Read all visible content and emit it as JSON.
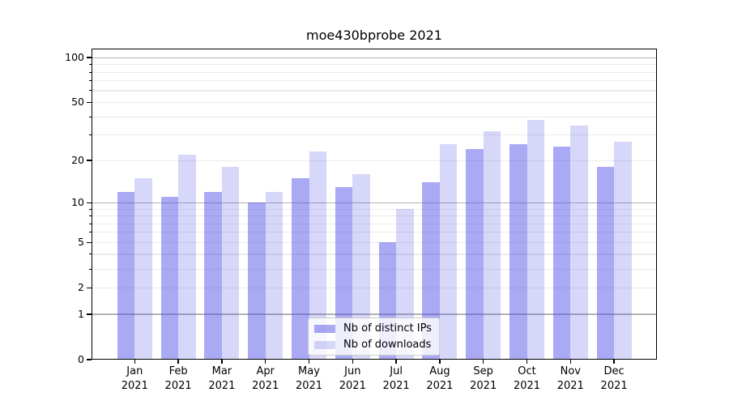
{
  "figure": {
    "title": "moe430bprobe 2021"
  },
  "chart_data": {
    "type": "bar",
    "title": "moe430bprobe 2021",
    "x": {
      "categories": [
        "Jan",
        "Feb",
        "Mar",
        "Apr",
        "May",
        "Jun",
        "Jul",
        "Aug",
        "Sep",
        "Oct",
        "Nov",
        "Dec"
      ],
      "year_line": "2021"
    },
    "series": [
      {
        "name": "Nb of distinct IPs",
        "color": "rgba(75,75,232,0.48)",
        "values": [
          12,
          11,
          12,
          10,
          15,
          13,
          5,
          14,
          24,
          26,
          25,
          18
        ]
      },
      {
        "name": "Nb of downloads",
        "color": "rgba(75,75,232,0.22)",
        "values": [
          15,
          22,
          18,
          12,
          23,
          16,
          9,
          26,
          32,
          38,
          35,
          27
        ]
      }
    ],
    "y_axis": {
      "scale": "log1p",
      "labeled_ticks": [
        100,
        50,
        20,
        10,
        5,
        2,
        1,
        0
      ],
      "major_gridlines": [
        1,
        10,
        100
      ],
      "minor_gridlines": [
        2,
        3,
        4,
        5,
        6,
        7,
        8,
        9,
        20,
        30,
        40,
        50,
        60,
        70,
        80,
        90
      ],
      "ymax": 110,
      "ymin": 0
    },
    "legend": {
      "position": "lower center",
      "items": [
        "Nb of distinct IPs",
        "Nb of downloads"
      ]
    },
    "grid": true
  },
  "colors": {
    "background": "#ffffff",
    "spine": "#000000",
    "major_grid": "#b3b3b3",
    "minor_grid": "#ebebeb",
    "bar_dark": "rgba(75,75,232,0.48)",
    "bar_light": "rgba(75,75,232,0.22)",
    "legend_bg": "rgba(255,255,255,0.8)",
    "legend_border": "#cccccc",
    "text": "#000000"
  }
}
